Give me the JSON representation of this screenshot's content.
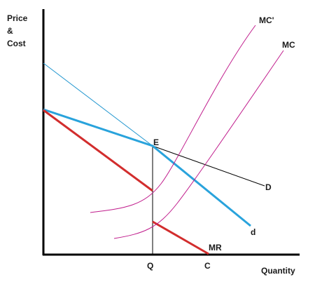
{
  "y_axis_label": [
    "Price",
    "&",
    "Cost"
  ],
  "x_axis_label": "Quantity",
  "point_labels": {
    "equilibrium": "E",
    "quantity": "Q",
    "c_point": "C"
  },
  "curve_labels": {
    "mc_prime": "MC'",
    "mc": "MC",
    "demand_upper": "D",
    "demand_lower": "d",
    "marginal_revenue": "MR"
  },
  "colors": {
    "axis": "#000000",
    "demand_d": "#29a3dc",
    "thin_demand": "#2196cf",
    "mr": "#d22d2d",
    "mc": "#c01c8c",
    "guide": "#000000"
  }
}
